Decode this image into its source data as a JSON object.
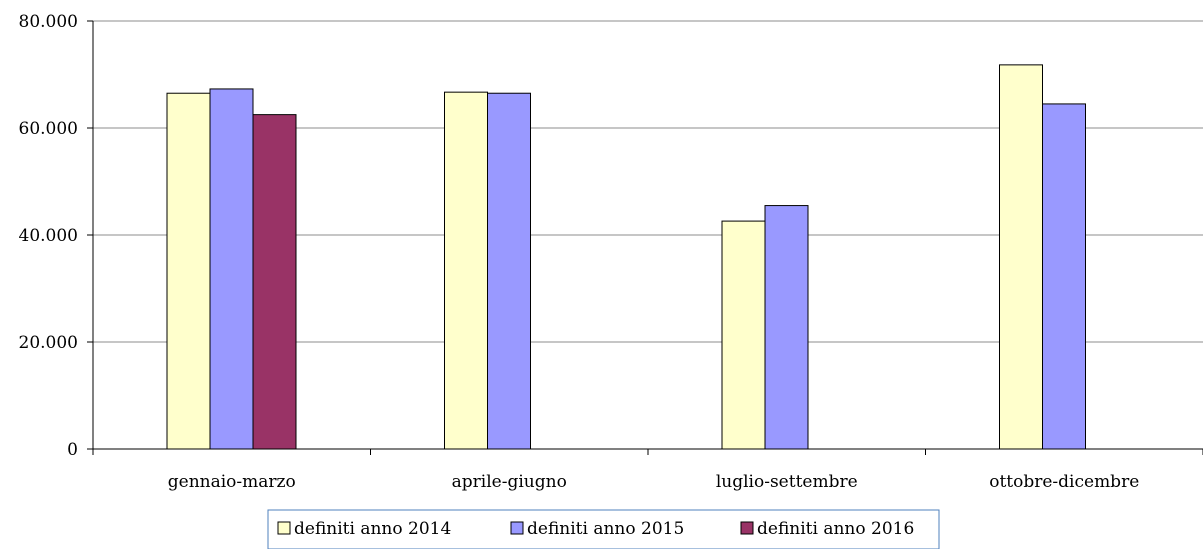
{
  "chart_data": {
    "type": "bar",
    "categories": [
      "gennaio-marzo",
      "aprile-giugno",
      "luglio-settembre",
      "ottobre-dicembre"
    ],
    "series": [
      {
        "name": "definiti anno 2014",
        "values": [
          66500,
          66700,
          42600,
          71800
        ],
        "color": "#ffffcc"
      },
      {
        "name": "definiti anno 2015",
        "values": [
          67300,
          66500,
          45500,
          64500
        ],
        "color": "#9999ff"
      },
      {
        "name": "definiti anno 2016",
        "values": [
          62500,
          null,
          null,
          null
        ],
        "color": "#993366"
      }
    ],
    "ylim": [
      0,
      80000
    ],
    "yticks": [
      0,
      20000,
      40000,
      60000,
      80000
    ],
    "ytick_labels": [
      "0",
      "20.000",
      "40.000",
      "60.000",
      "80.000"
    ],
    "grid": true,
    "legend_position": "bottom"
  }
}
